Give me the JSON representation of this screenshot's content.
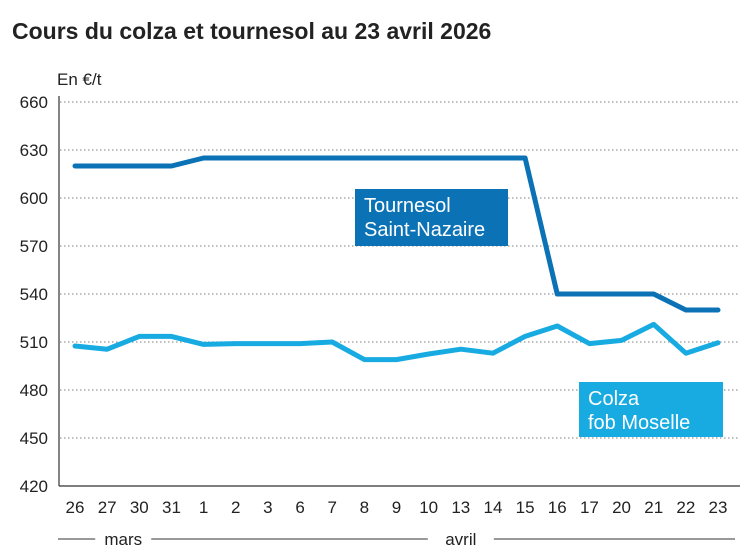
{
  "chart_data": {
    "type": "line",
    "title": "Cours du colza et tournesol au 23 avril 2026",
    "ylabel": "En €/t",
    "ylim": [
      420,
      660
    ],
    "yticks": [
      420,
      450,
      480,
      510,
      540,
      570,
      600,
      630,
      660
    ],
    "grid": "horizontal dotted",
    "categories": [
      "26",
      "27",
      "30",
      "31",
      "1",
      "2",
      "3",
      "6",
      "7",
      "8",
      "9",
      "10",
      "13",
      "14",
      "15",
      "16",
      "17",
      "20",
      "21",
      "22",
      "23"
    ],
    "month_groups": [
      {
        "label": "mars",
        "from": 0,
        "to": 3
      },
      {
        "label": "avril",
        "from": 4,
        "to": 20
      }
    ],
    "series": [
      {
        "name": "Tournesol Saint-Nazaire",
        "label_lines": [
          "Tournesol",
          "Saint-Nazaire"
        ],
        "color": "#0b72b6",
        "values": [
          620,
          620,
          620,
          620,
          625,
          625,
          625,
          625,
          625,
          625,
          625,
          625,
          625,
          625,
          625,
          540,
          540,
          540,
          540,
          530,
          530
        ]
      },
      {
        "name": "Colza fob Moselle",
        "label_lines": [
          "Colza",
          "fob Moselle"
        ],
        "color": "#17abe2",
        "values": [
          507.5,
          505.5,
          513.5,
          513.5,
          508.5,
          509,
          509,
          509,
          510,
          499,
          499,
          502.5,
          505.5,
          503,
          513.5,
          520,
          509,
          511,
          521,
          503,
          509.5
        ]
      }
    ]
  }
}
